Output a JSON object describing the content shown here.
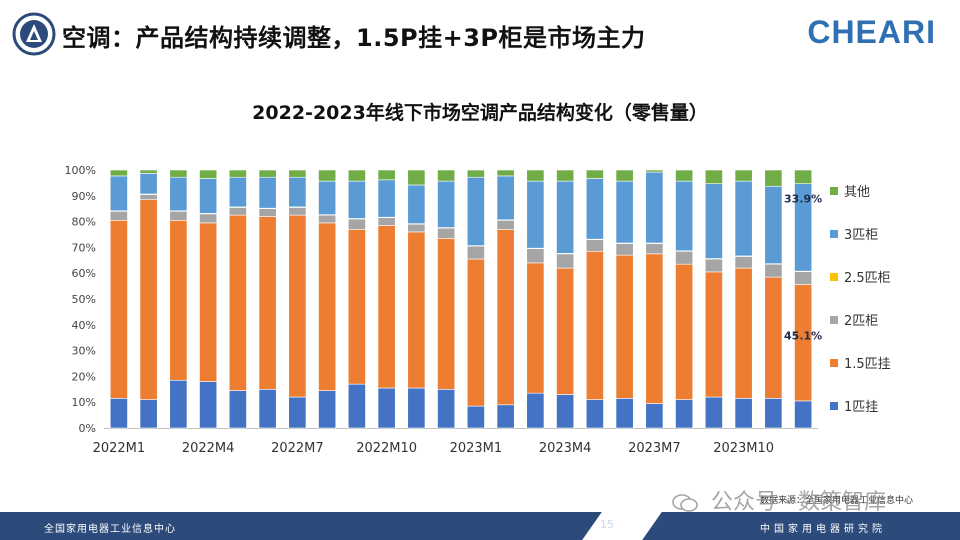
{
  "header": {
    "title": "空调：产品结构持续调整，1.5P挂+3P柜是市场主力",
    "brand": "CHEARI"
  },
  "chart_data": {
    "type": "bar",
    "stacked": true,
    "title": "2022-2023年线下市场空调产品结构变化（零售量）",
    "xlabel": "",
    "ylabel": "",
    "ylim": [
      0,
      100
    ],
    "ytick_labels": [
      "0%",
      "10%",
      "20%",
      "30%",
      "40%",
      "50%",
      "60%",
      "70%",
      "80%",
      "90%",
      "100%"
    ],
    "categories": [
      "2022M1",
      "2022M2",
      "2022M3",
      "2022M4",
      "2022M5",
      "2022M6",
      "2022M7",
      "2022M8",
      "2022M9",
      "2022M10",
      "2022M11",
      "2022M12",
      "2023M1",
      "2023M2",
      "2023M3",
      "2023M4",
      "2023M5",
      "2023M6",
      "2023M7",
      "2023M8",
      "2023M9",
      "2023M10",
      "2023M11",
      "2023M12"
    ],
    "xtick_labels": [
      "2022M1",
      "2022M4",
      "2022M7",
      "2022M10",
      "2023M1",
      "2023M4",
      "2023M7",
      "2023M10"
    ],
    "series": [
      {
        "name": "1匹挂",
        "color": "#4472c4",
        "values": [
          11.5,
          11,
          18.5,
          18,
          14.5,
          15,
          12,
          14.5,
          17,
          15.5,
          15.5,
          15,
          8.5,
          9,
          13.5,
          13,
          11,
          11.5,
          9.5,
          11,
          12,
          11.5,
          11.5,
          10.5
        ]
      },
      {
        "name": "1.5匹挂",
        "color": "#ed7d31",
        "values": [
          69,
          77.5,
          62,
          61.5,
          68,
          67,
          70.5,
          65,
          60,
          63,
          60.5,
          58.5,
          57,
          68,
          50.5,
          49,
          57.5,
          55.5,
          58,
          52.5,
          48.5,
          50.5,
          47,
          45.1
        ]
      },
      {
        "name": "2匹柜",
        "color": "#a5a5a5",
        "values": [
          3.5,
          2,
          3.5,
          3.5,
          3,
          3,
          3,
          3,
          4,
          3,
          3,
          4,
          5,
          3.5,
          5.5,
          5.5,
          4.5,
          4.5,
          4,
          5,
          5,
          4.5,
          5,
          5
        ]
      },
      {
        "name": "2.5匹柜",
        "color": "#ffc000",
        "values": [
          0.2,
          0.2,
          0.2,
          0.2,
          0.2,
          0.2,
          0.2,
          0.2,
          0.2,
          0.2,
          0.2,
          0.2,
          0.2,
          0.2,
          0.2,
          0.2,
          0.2,
          0.2,
          0.2,
          0.2,
          0.2,
          0.2,
          0.2,
          0.2
        ]
      },
      {
        "name": "3匹柜",
        "color": "#5b9bd5",
        "values": [
          13.5,
          8,
          13,
          13.5,
          11.5,
          12,
          11.5,
          13,
          14.5,
          14.5,
          15,
          18,
          26.5,
          17,
          26,
          28,
          23.5,
          24,
          27.5,
          27,
          29,
          29,
          30,
          33.9
        ]
      },
      {
        "name": "其他",
        "color": "#70ad47",
        "values": [
          2.3,
          1.3,
          2.8,
          3.3,
          2.8,
          2.8,
          2.8,
          4.3,
          4.3,
          3.8,
          5.8,
          4.3,
          2.8,
          2.3,
          4.3,
          4.3,
          3.3,
          4.3,
          0.8,
          4.3,
          5.3,
          4.3,
          6.3,
          5.3
        ]
      }
    ],
    "annotations": [
      {
        "label": "33.9%",
        "series": "3匹柜",
        "category": "2023M12"
      },
      {
        "label": "45.1%",
        "series": "1.5匹挂",
        "category": "2023M12"
      }
    ],
    "legend_order": [
      "其他",
      "3匹柜",
      "2.5匹柜",
      "2匹柜",
      "1.5匹挂",
      "1匹挂"
    ],
    "legend_position": "right"
  },
  "source": "数据来源：全国家用电器工业信息中心",
  "watermark": "公众号 · 数策智库",
  "footer": {
    "left": "全国家用电器工业信息中心",
    "page": "15",
    "right": "中国家用电器研究院"
  }
}
